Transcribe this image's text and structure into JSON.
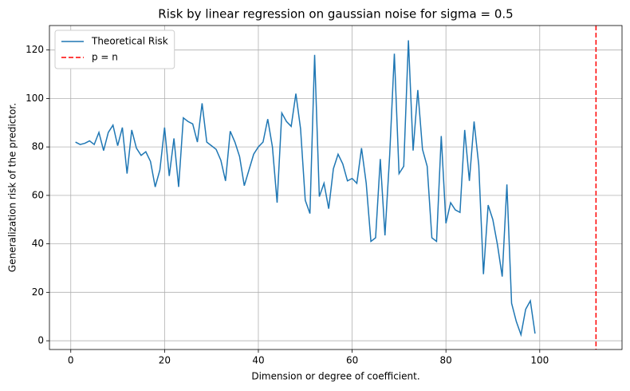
{
  "chart_data": {
    "type": "line",
    "title": "Risk by linear regression on gaussian noise for sigma = 0.5",
    "xlabel": "Dimension or degree of coefficient.",
    "ylabel": "Generalization risk of the predictor.",
    "x": [
      1,
      2,
      3,
      4,
      5,
      6,
      7,
      8,
      9,
      10,
      11,
      12,
      13,
      14,
      15,
      16,
      17,
      18,
      19,
      20,
      21,
      22,
      23,
      24,
      25,
      26,
      27,
      28,
      29,
      30,
      31,
      32,
      33,
      34,
      35,
      36,
      37,
      38,
      39,
      40,
      41,
      42,
      43,
      44,
      45,
      46,
      47,
      48,
      49,
      50,
      51,
      52,
      53,
      54,
      55,
      56,
      57,
      58,
      59,
      60,
      61,
      62,
      63,
      64,
      65,
      66,
      67,
      68,
      69,
      70,
      71,
      72,
      73,
      74,
      75,
      76,
      77,
      78,
      79,
      80,
      81,
      82,
      83,
      84,
      85,
      86,
      87,
      88,
      89,
      90,
      91,
      92,
      93,
      94,
      95,
      96,
      97,
      98,
      99
    ],
    "series": [
      {
        "name": "Theoretical Risk",
        "color": "#1f77b4",
        "values": [
          82,
          81,
          81.5,
          82.5,
          81,
          86,
          78.5,
          86,
          89,
          80.5,
          88,
          69,
          87,
          79.5,
          76.5,
          78,
          74,
          63.5,
          70.5,
          88,
          68,
          83.5,
          63.5,
          92,
          90.5,
          89.5,
          82,
          98,
          82,
          80.5,
          79,
          74.5,
          66,
          86.5,
          82,
          76,
          64,
          70.5,
          77,
          80,
          82,
          91.5,
          80,
          57,
          94,
          90.5,
          88.5,
          102,
          87.5,
          58,
          52.5,
          118,
          59.5,
          65,
          54.5,
          71,
          77,
          73,
          66,
          67,
          65,
          79.5,
          65,
          41,
          42.5,
          75,
          43.5,
          76.5,
          118.5,
          69,
          72,
          124,
          78.5,
          103.5,
          79,
          72,
          42.5,
          41,
          84.5,
          48.5,
          57,
          54,
          53,
          87,
          66,
          90.5,
          72.5,
          27.5,
          56,
          50,
          39.5,
          26.5,
          64.5,
          15.5,
          8,
          2.5,
          13,
          16.5,
          3
        ]
      }
    ],
    "vlines": [
      {
        "name": "p = n",
        "x": 112,
        "color": "#ff0000",
        "style": "dashed"
      }
    ],
    "xlim": [
      -4.55,
      117.55
    ],
    "ylim": [
      -3.6,
      130.1
    ],
    "xticks": [
      0,
      20,
      40,
      60,
      80,
      100
    ],
    "yticks": [
      0,
      20,
      40,
      60,
      80,
      100,
      120
    ],
    "grid": true,
    "legend": "upper left"
  }
}
